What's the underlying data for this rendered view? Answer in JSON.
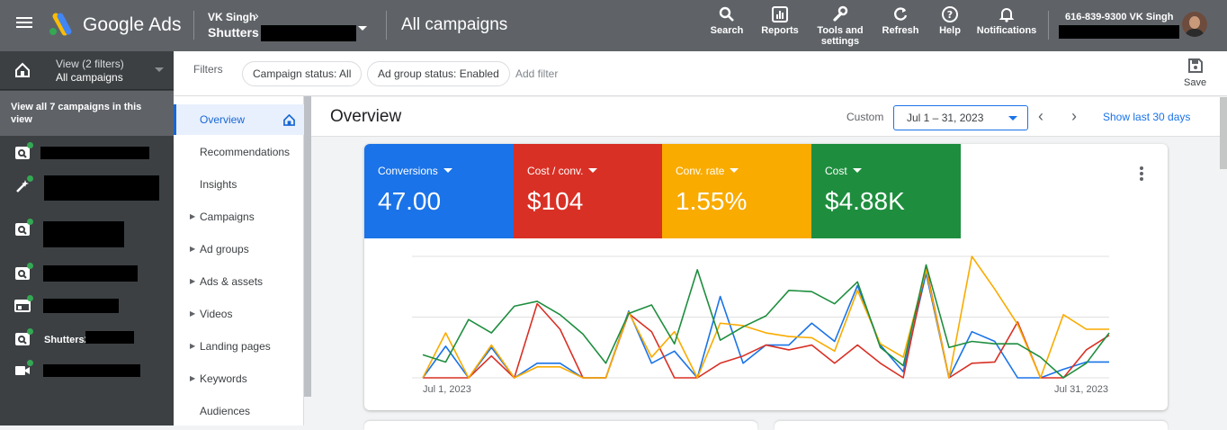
{
  "topbar": {
    "brand": "Google Ads",
    "account_owner": "VK Singh",
    "account_name": "Shutters",
    "page_title": "All campaigns",
    "tools": [
      {
        "label": "Search",
        "icon": "search-icon"
      },
      {
        "label": "Reports",
        "icon": "reports-icon"
      },
      {
        "label": "Tools and settings",
        "icon": "wrench-icon"
      },
      {
        "label": "Refresh",
        "icon": "refresh-icon"
      },
      {
        "label": "Help",
        "icon": "help-icon"
      },
      {
        "label": "Notifications",
        "icon": "bell-icon"
      }
    ],
    "user_label": "616-839-9300 VK Singh"
  },
  "leftnav": {
    "view_label": "View (2 filters)",
    "view_value": "All campaigns",
    "view_all": "View all 7 campaigns in this view",
    "campaigns": [
      {
        "icon": "search-campaign-icon",
        "name": ""
      },
      {
        "icon": "performance-max-icon",
        "name": ""
      },
      {
        "icon": "search-campaign-icon",
        "name": ""
      },
      {
        "icon": "search-campaign-icon",
        "name": ""
      },
      {
        "icon": "display-campaign-icon",
        "name": ""
      },
      {
        "icon": "search-campaign-icon",
        "name": "Shutters2"
      },
      {
        "icon": "video-campaign-icon",
        "name": ""
      }
    ]
  },
  "subnav": {
    "items": [
      {
        "label": "Overview",
        "active": true,
        "expandable": false
      },
      {
        "label": "Recommendations",
        "active": false,
        "expandable": false
      },
      {
        "label": "Insights",
        "active": false,
        "expandable": false
      },
      {
        "label": "Campaigns",
        "active": false,
        "expandable": true
      },
      {
        "label": "Ad groups",
        "active": false,
        "expandable": true
      },
      {
        "label": "Ads & assets",
        "active": false,
        "expandable": true
      },
      {
        "label": "Videos",
        "active": false,
        "expandable": true
      },
      {
        "label": "Landing pages",
        "active": false,
        "expandable": true
      },
      {
        "label": "Keywords",
        "active": false,
        "expandable": true
      },
      {
        "label": "Audiences",
        "active": false,
        "expandable": false
      }
    ]
  },
  "filters": {
    "label": "Filters",
    "chips": [
      "Campaign status: All",
      "Ad group status: Enabled"
    ],
    "add_filter": "Add filter",
    "save_label": "Save"
  },
  "overview": {
    "title": "Overview",
    "custom_label": "Custom",
    "date_range": "Jul 1 – 31, 2023",
    "show_last": "Show last 30 days"
  },
  "metrics": [
    {
      "label": "Conversions",
      "value": "47.00",
      "color": "#1a73e8"
    },
    {
      "label": "Cost / conv.",
      "value": "$104",
      "color": "#d93025"
    },
    {
      "label": "Conv. rate",
      "value": "1.55%",
      "color": "#f9ab00"
    },
    {
      "label": "Cost",
      "value": "$4.88K",
      "color": "#1e8e3e"
    }
  ],
  "chart_data": {
    "type": "line",
    "x_start_label": "Jul 1, 2023",
    "x_end_label": "Jul 31, 2023",
    "x": [
      1,
      2,
      3,
      4,
      5,
      6,
      7,
      8,
      9,
      10,
      11,
      12,
      13,
      14,
      15,
      16,
      17,
      18,
      19,
      20,
      21,
      22,
      23,
      24,
      25,
      26,
      27,
      28,
      29,
      30,
      31
    ],
    "ylim": [
      0,
      1
    ],
    "grid": true,
    "series": [
      {
        "name": "Conversions",
        "color": "#1a73e8",
        "values": [
          0.0,
          0.26,
          0.0,
          0.25,
          0.0,
          0.12,
          0.12,
          0.0,
          0.0,
          0.55,
          0.12,
          0.22,
          0.0,
          0.67,
          0.12,
          0.27,
          0.27,
          0.45,
          0.3,
          0.76,
          0.27,
          0.05,
          0.86,
          0.0,
          0.38,
          0.3,
          0.0,
          0.0,
          0.07,
          0.13,
          0.13
        ]
      },
      {
        "name": "Cost / conv.",
        "color": "#d93025",
        "values": [
          0.0,
          0.0,
          0.0,
          0.18,
          0.0,
          0.61,
          0.4,
          0.0,
          0.0,
          0.53,
          0.38,
          0.0,
          0.0,
          0.12,
          0.18,
          0.27,
          0.23,
          0.27,
          0.12,
          0.27,
          0.12,
          0.0,
          0.91,
          0.0,
          0.12,
          0.13,
          0.46,
          0.0,
          0.0,
          0.23,
          0.35
        ]
      },
      {
        "name": "Conv. rate",
        "color": "#f9ab00",
        "values": [
          0.0,
          0.37,
          0.0,
          0.27,
          0.0,
          0.09,
          0.09,
          0.0,
          0.0,
          0.54,
          0.17,
          0.38,
          0.0,
          0.45,
          0.43,
          0.37,
          0.34,
          0.33,
          0.22,
          0.72,
          0.28,
          0.17,
          0.89,
          0.0,
          1.0,
          0.73,
          0.44,
          0.0,
          0.52,
          0.4,
          0.4
        ]
      },
      {
        "name": "Cost",
        "color": "#1e8e3e",
        "values": [
          0.19,
          0.13,
          0.48,
          0.37,
          0.59,
          0.63,
          0.52,
          0.36,
          0.12,
          0.53,
          0.6,
          0.28,
          0.89,
          0.31,
          0.42,
          0.51,
          0.72,
          0.71,
          0.61,
          0.79,
          0.25,
          0.1,
          0.93,
          0.25,
          0.3,
          0.28,
          0.28,
          0.17,
          0.0,
          0.12,
          0.37
        ]
      }
    ]
  }
}
